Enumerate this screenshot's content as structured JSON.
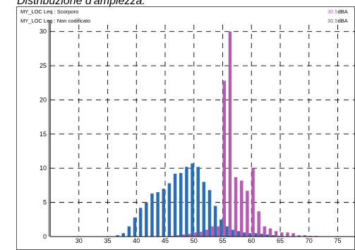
{
  "title": "Distribuzione d'ampiezza:",
  "legend": [
    {
      "label": "MY_LOC  Leq : Scorporo",
      "value": "30.5",
      "unit": "dBA",
      "color": "#b45cb0"
    },
    {
      "label": "MY_LOC  Leq : Non codificato",
      "value": "30.5",
      "unit": "dBA",
      "color": "#2a6db5"
    }
  ],
  "chart_data": {
    "type": "bar",
    "title": "Distribuzione d'ampiezza:",
    "xlabel": "",
    "ylabel": "",
    "xlim": [
      25,
      78
    ],
    "ylim": [
      0,
      31
    ],
    "xticks": [
      30,
      35,
      40,
      45,
      50,
      55,
      60,
      65,
      70,
      75
    ],
    "yticks": [
      0,
      5,
      10,
      15,
      20,
      25,
      30
    ],
    "grid": true,
    "series": [
      {
        "name": "MY_LOC  Leq : Non codificato",
        "color": "#2a6db5",
        "x": [
          37,
          38,
          39,
          40,
          41,
          42,
          43,
          44,
          45,
          46,
          47,
          48,
          49,
          50,
          51,
          52,
          53,
          54,
          55,
          56,
          57,
          58,
          59,
          60,
          61,
          62,
          63,
          64,
          65
        ],
        "values": [
          0.2,
          0.5,
          1.5,
          2.8,
          4.2,
          5.0,
          6.3,
          6.5,
          7.0,
          7.8,
          9.2,
          9.3,
          10.2,
          10.7,
          10.2,
          8.0,
          6.8,
          4.5,
          2.5,
          1.5,
          1.0,
          0.8,
          0.6,
          0.5,
          0.5,
          0.4,
          0.3,
          0.2,
          0.1
        ]
      },
      {
        "name": "MY_LOC  Leq : Scorporo",
        "color": "#b45cb0",
        "x": [
          46,
          47,
          48,
          49,
          50,
          51,
          52,
          53,
          54,
          55,
          56,
          57,
          58,
          59,
          60,
          61,
          62,
          63,
          64,
          65,
          66,
          67,
          68,
          69,
          70,
          71
        ],
        "values": [
          0.1,
          0.2,
          0.3,
          0.4,
          0.6,
          0.7,
          1.0,
          1.5,
          1.5,
          22.8,
          30.0,
          8.7,
          8.2,
          6.7,
          10.0,
          3.7,
          1.5,
          1.2,
          0.8,
          0.6,
          0.6,
          0.5,
          0.2,
          0.2,
          0.1,
          0.1
        ]
      }
    ]
  }
}
